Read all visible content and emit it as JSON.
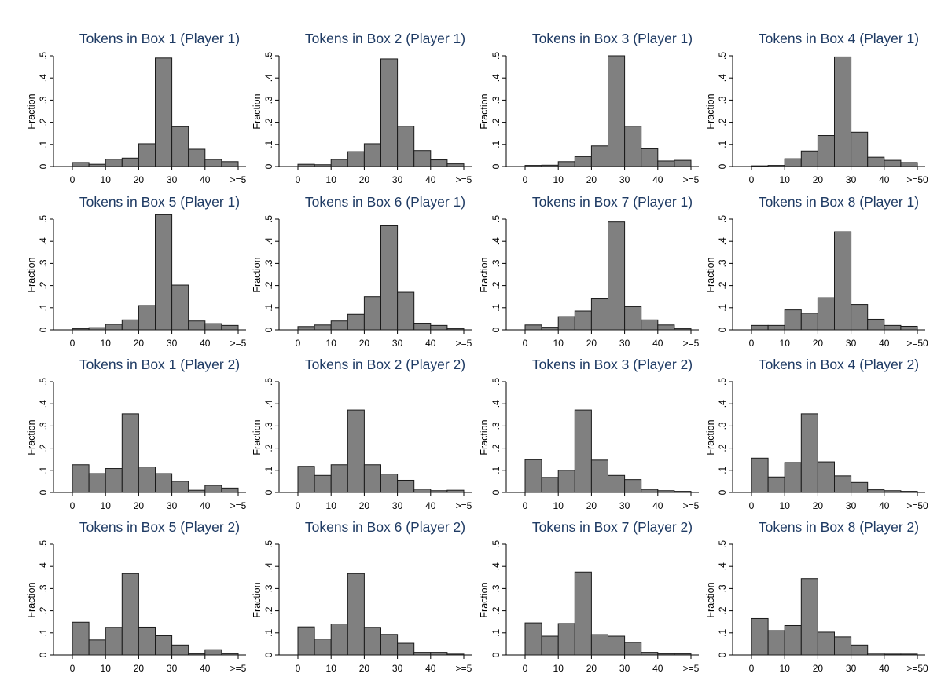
{
  "chart_data": [
    {
      "type": "bar",
      "title": "Tokens in Box 1 (Player 1)",
      "ylabel": "Fraction",
      "ylim": [
        0,
        0.5
      ],
      "yticks": [
        "0",
        ".1",
        ".2",
        ".3",
        ".4",
        ".5"
      ],
      "xticks": [
        "0",
        "10",
        "20",
        "30",
        "40",
        ">=5"
      ],
      "bin_width": 5,
      "x_start": 0,
      "values": [
        0.018,
        0.01,
        0.033,
        0.038,
        0.103,
        0.49,
        0.18,
        0.078,
        0.032,
        0.022
      ]
    },
    {
      "type": "bar",
      "title": "Tokens in Box 2 (Player 1)",
      "ylabel": "Fraction",
      "ylim": [
        0,
        0.5
      ],
      "yticks": [
        "0",
        ".1",
        ".2",
        ".3",
        ".4",
        ".5"
      ],
      "xticks": [
        "0",
        "10",
        "20",
        "30",
        "40",
        ">=5"
      ],
      "bin_width": 5,
      "x_start": 0,
      "values": [
        0.01,
        0.008,
        0.032,
        0.067,
        0.103,
        0.486,
        0.182,
        0.072,
        0.03,
        0.012
      ]
    },
    {
      "type": "bar",
      "title": "Tokens in Box 3 (Player 1)",
      "ylabel": "Fraction",
      "ylim": [
        0,
        0.5
      ],
      "yticks": [
        "0",
        ".1",
        ".2",
        ".3",
        ".4",
        ".5"
      ],
      "xticks": [
        "0",
        "10",
        "20",
        "30",
        "40",
        ">=5"
      ],
      "bin_width": 5,
      "x_start": 0,
      "values": [
        0.005,
        0.006,
        0.022,
        0.045,
        0.093,
        0.5,
        0.182,
        0.08,
        0.025,
        0.028
      ]
    },
    {
      "type": "bar",
      "title": "Tokens in Box 4 (Player 1)",
      "ylabel": "Fraction",
      "ylim": [
        0,
        0.5
      ],
      "yticks": [
        "0",
        ".1",
        ".2",
        ".3",
        ".4",
        ".5"
      ],
      "xticks": [
        "0",
        "10",
        "20",
        "30",
        "40",
        ">=50"
      ],
      "bin_width": 5,
      "x_start": 0,
      "values": [
        0.003,
        0.005,
        0.035,
        0.07,
        0.14,
        0.495,
        0.155,
        0.042,
        0.028,
        0.018
      ]
    },
    {
      "type": "bar",
      "title": "Tokens in Box 5 (Player 1)",
      "ylabel": "Fraction",
      "ylim": [
        0,
        0.5
      ],
      "yticks": [
        "0",
        ".1",
        ".2",
        ".3",
        ".4",
        ".5"
      ],
      "xticks": [
        "0",
        "10",
        "20",
        "30",
        "40",
        ">=5"
      ],
      "bin_width": 5,
      "x_start": 0,
      "values": [
        0.005,
        0.01,
        0.025,
        0.045,
        0.11,
        0.52,
        0.202,
        0.04,
        0.028,
        0.02
      ]
    },
    {
      "type": "bar",
      "title": "Tokens in Box 6 (Player 1)",
      "ylabel": "Fraction",
      "ylim": [
        0,
        0.5
      ],
      "yticks": [
        "0",
        ".1",
        ".2",
        ".3",
        ".4",
        ".5"
      ],
      "xticks": [
        "0",
        "10",
        "20",
        "30",
        "40",
        ">=5"
      ],
      "bin_width": 5,
      "x_start": 0,
      "values": [
        0.015,
        0.022,
        0.04,
        0.07,
        0.15,
        0.47,
        0.17,
        0.03,
        0.02,
        0.005
      ]
    },
    {
      "type": "bar",
      "title": "Tokens in Box 7 (Player 1)",
      "ylabel": "Fraction",
      "ylim": [
        0,
        0.5
      ],
      "yticks": [
        "0",
        ".1",
        ".2",
        ".3",
        ".4",
        ".5"
      ],
      "xticks": [
        "0",
        "10",
        "20",
        "30",
        "40",
        ">=5"
      ],
      "bin_width": 5,
      "x_start": 0,
      "values": [
        0.022,
        0.012,
        0.06,
        0.085,
        0.14,
        0.487,
        0.105,
        0.045,
        0.022,
        0.005
      ]
    },
    {
      "type": "bar",
      "title": "Tokens in Box 8 (Player 1)",
      "ylabel": "Fraction",
      "ylim": [
        0,
        0.5
      ],
      "yticks": [
        "0",
        ".1",
        ".2",
        ".3",
        ".4",
        ".5"
      ],
      "xticks": [
        "0",
        "10",
        "20",
        "30",
        "40",
        ">=50"
      ],
      "bin_width": 5,
      "x_start": 0,
      "values": [
        0.02,
        0.02,
        0.09,
        0.075,
        0.145,
        0.443,
        0.115,
        0.048,
        0.02,
        0.016
      ]
    },
    {
      "type": "bar",
      "title": "Tokens in Box 1 (Player 2)",
      "ylabel": "Fraction",
      "ylim": [
        0,
        0.5
      ],
      "yticks": [
        "0",
        ".1",
        ".2",
        ".3",
        ".4",
        ".5"
      ],
      "xticks": [
        "0",
        "10",
        "20",
        "30",
        "40",
        ">=5"
      ],
      "bin_width": 5,
      "x_start": 0,
      "values": [
        0.125,
        0.085,
        0.108,
        0.355,
        0.115,
        0.085,
        0.05,
        0.01,
        0.032,
        0.02
      ]
    },
    {
      "type": "bar",
      "title": "Tokens in Box 2 (Player 2)",
      "ylabel": "Fraction",
      "ylim": [
        0,
        0.5
      ],
      "yticks": [
        "0",
        ".1",
        ".2",
        ".3",
        ".4",
        ".5"
      ],
      "xticks": [
        "0",
        "10",
        "20",
        "30",
        "40",
        ">=5"
      ],
      "bin_width": 5,
      "x_start": 0,
      "values": [
        0.118,
        0.077,
        0.125,
        0.372,
        0.125,
        0.083,
        0.055,
        0.015,
        0.008,
        0.01
      ]
    },
    {
      "type": "bar",
      "title": "Tokens in Box 3 (Player 2)",
      "ylabel": "Fraction",
      "ylim": [
        0,
        0.5
      ],
      "yticks": [
        "0",
        ".1",
        ".2",
        ".3",
        ".4",
        ".5"
      ],
      "xticks": [
        "0",
        "10",
        "20",
        "30",
        "40",
        ">=5"
      ],
      "bin_width": 5,
      "x_start": 0,
      "values": [
        0.148,
        0.068,
        0.1,
        0.372,
        0.146,
        0.077,
        0.058,
        0.014,
        0.008,
        0.005
      ]
    },
    {
      "type": "bar",
      "title": "Tokens in Box 4 (Player 2)",
      "ylabel": "Fraction",
      "ylim": [
        0,
        0.5
      ],
      "yticks": [
        "0",
        ".1",
        ".2",
        ".3",
        ".4",
        ".5"
      ],
      "xticks": [
        "0",
        "10",
        "20",
        "30",
        "40",
        ">=50"
      ],
      "bin_width": 5,
      "x_start": 0,
      "values": [
        0.155,
        0.07,
        0.135,
        0.355,
        0.138,
        0.075,
        0.045,
        0.012,
        0.008,
        0.005
      ]
    },
    {
      "type": "bar",
      "title": "Tokens in Box 5 (Player 2)",
      "ylabel": "Fraction",
      "ylim": [
        0,
        0.5
      ],
      "yticks": [
        "0",
        ".1",
        ".2",
        ".3",
        ".4",
        ".5"
      ],
      "xticks": [
        "0",
        "10",
        "20",
        "30",
        "40",
        ">=5"
      ],
      "bin_width": 5,
      "x_start": 0,
      "values": [
        0.148,
        0.068,
        0.125,
        0.368,
        0.126,
        0.087,
        0.045,
        0.005,
        0.024,
        0.006
      ]
    },
    {
      "type": "bar",
      "title": "Tokens in Box 6 (Player 2)",
      "ylabel": "Fraction",
      "ylim": [
        0,
        0.5
      ],
      "yticks": [
        "0",
        ".1",
        ".2",
        ".3",
        ".4",
        ".5"
      ],
      "xticks": [
        "0",
        "10",
        "20",
        "30",
        "40",
        ">=5"
      ],
      "bin_width": 5,
      "x_start": 0,
      "values": [
        0.127,
        0.072,
        0.14,
        0.368,
        0.125,
        0.093,
        0.053,
        0.012,
        0.012,
        0.004
      ]
    },
    {
      "type": "bar",
      "title": "Tokens in Box 7 (Player 2)",
      "ylabel": "Fraction",
      "ylim": [
        0,
        0.5
      ],
      "yticks": [
        "0",
        ".1",
        ".2",
        ".3",
        ".4",
        ".5"
      ],
      "xticks": [
        "0",
        "10",
        "20",
        "30",
        "40",
        ">=5"
      ],
      "bin_width": 5,
      "x_start": 0,
      "values": [
        0.145,
        0.085,
        0.142,
        0.375,
        0.092,
        0.085,
        0.057,
        0.012,
        0.005,
        0.005
      ]
    },
    {
      "type": "bar",
      "title": "Tokens in Box 8 (Player 2)",
      "ylabel": "Fraction",
      "ylim": [
        0,
        0.5
      ],
      "yticks": [
        "0",
        ".1",
        ".2",
        ".3",
        ".4",
        ".5"
      ],
      "xticks": [
        "0",
        "10",
        "20",
        "30",
        "40",
        ">=50"
      ],
      "bin_width": 5,
      "x_start": 0,
      "values": [
        0.165,
        0.11,
        0.133,
        0.345,
        0.103,
        0.082,
        0.045,
        0.008,
        0.004,
        0.004
      ]
    }
  ]
}
